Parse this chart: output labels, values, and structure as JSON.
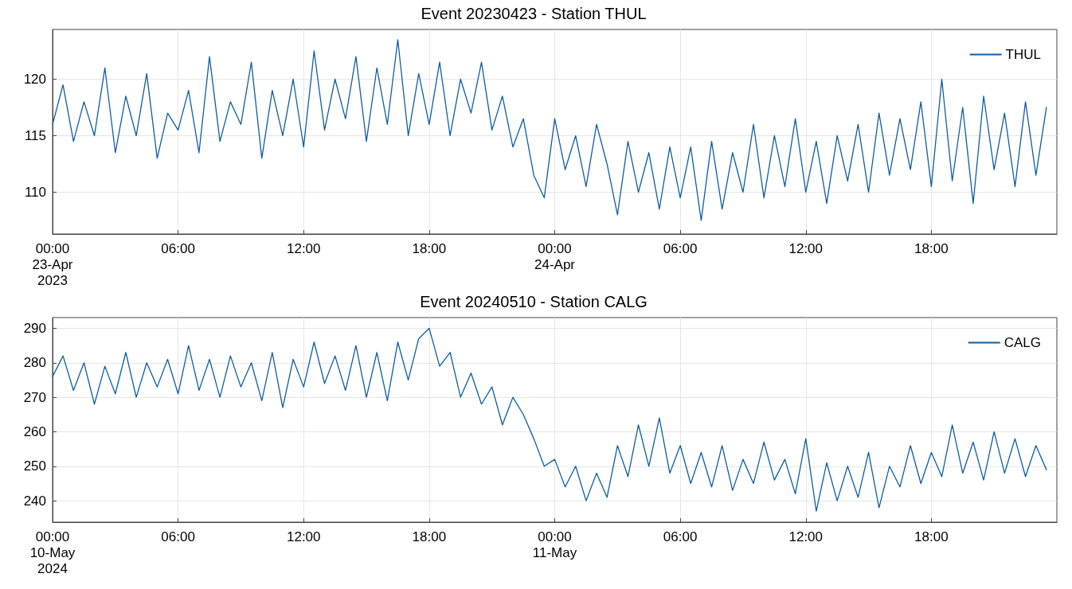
{
  "chart_data": [
    {
      "type": "line",
      "title": "Event 20230423 - Station THUL",
      "xlim": [
        "2023-04-23T00:00",
        "2023-04-25T00:00"
      ],
      "ylim": [
        106.3,
        124.4
      ],
      "yticks": [
        110,
        115,
        120
      ],
      "xticks": [
        {
          "value": "2023-04-23T00:00",
          "label": "00:00\n23-Apr\n2023"
        },
        {
          "value": "2023-04-23T06:00",
          "label": "06:00"
        },
        {
          "value": "2023-04-23T12:00",
          "label": "12:00"
        },
        {
          "value": "2023-04-23T18:00",
          "label": "18:00"
        },
        {
          "value": "2023-04-24T00:00",
          "label": "00:00\n24-Apr"
        },
        {
          "value": "2023-04-24T06:00",
          "label": "06:00"
        },
        {
          "value": "2023-04-24T12:00",
          "label": "12:00"
        },
        {
          "value": "2023-04-24T18:00",
          "label": "18:00"
        }
      ],
      "grid": true,
      "legend": "top right",
      "marker": "none",
      "line_style": "solid",
      "x": [
        "2023-04-23T00:00",
        "2023-04-23T00:30",
        "2023-04-23T01:00",
        "2023-04-23T01:30",
        "2023-04-23T02:00",
        "2023-04-23T02:30",
        "2023-04-23T03:00",
        "2023-04-23T03:30",
        "2023-04-23T04:00",
        "2023-04-23T04:30",
        "2023-04-23T05:00",
        "2023-04-23T05:30",
        "2023-04-23T06:00",
        "2023-04-23T06:30",
        "2023-04-23T07:00",
        "2023-04-23T07:30",
        "2023-04-23T08:00",
        "2023-04-23T08:30",
        "2023-04-23T09:00",
        "2023-04-23T09:30",
        "2023-04-23T10:00",
        "2023-04-23T10:30",
        "2023-04-23T11:00",
        "2023-04-23T11:30",
        "2023-04-23T12:00",
        "2023-04-23T12:30",
        "2023-04-23T13:00",
        "2023-04-23T13:30",
        "2023-04-23T14:00",
        "2023-04-23T14:30",
        "2023-04-23T15:00",
        "2023-04-23T15:30",
        "2023-04-23T16:00",
        "2023-04-23T16:30",
        "2023-04-23T17:00",
        "2023-04-23T17:30",
        "2023-04-23T18:00",
        "2023-04-23T18:30",
        "2023-04-23T19:00",
        "2023-04-23T19:30",
        "2023-04-23T20:00",
        "2023-04-23T20:30",
        "2023-04-23T21:00",
        "2023-04-23T21:30",
        "2023-04-23T22:00",
        "2023-04-23T22:30",
        "2023-04-23T23:00",
        "2023-04-23T23:30",
        "2023-04-24T00:00",
        "2023-04-24T00:30",
        "2023-04-24T01:00",
        "2023-04-24T01:30",
        "2023-04-24T02:00",
        "2023-04-24T02:30",
        "2023-04-24T03:00",
        "2023-04-24T03:30",
        "2023-04-24T04:00",
        "2023-04-24T04:30",
        "2023-04-24T05:00",
        "2023-04-24T05:30",
        "2023-04-24T06:00",
        "2023-04-24T06:30",
        "2023-04-24T07:00",
        "2023-04-24T07:30",
        "2023-04-24T08:00",
        "2023-04-24T08:30",
        "2023-04-24T09:00",
        "2023-04-24T09:30",
        "2023-04-24T10:00",
        "2023-04-24T10:30",
        "2023-04-24T11:00",
        "2023-04-24T11:30",
        "2023-04-24T12:00",
        "2023-04-24T12:30",
        "2023-04-24T13:00",
        "2023-04-24T13:30",
        "2023-04-24T14:00",
        "2023-04-24T14:30",
        "2023-04-24T15:00",
        "2023-04-24T15:30",
        "2023-04-24T16:00",
        "2023-04-24T16:30",
        "2023-04-24T17:00",
        "2023-04-24T17:30",
        "2023-04-24T18:00",
        "2023-04-24T18:30",
        "2023-04-24T19:00",
        "2023-04-24T19:30",
        "2023-04-24T20:00",
        "2023-04-24T20:30",
        "2023-04-24T21:00",
        "2023-04-24T21:30",
        "2023-04-24T22:00",
        "2023-04-24T22:30",
        "2023-04-24T23:00",
        "2023-04-24T23:30"
      ],
      "series": [
        {
          "name": "THUL",
          "color": "#0c5da5",
          "values": [
            116,
            119.5,
            114.5,
            118,
            115,
            121,
            113.5,
            118.5,
            115,
            120.5,
            113,
            117,
            115.5,
            119,
            113.5,
            122,
            114.5,
            118,
            116,
            121.5,
            113,
            119,
            115,
            120,
            114,
            122.5,
            115.5,
            120,
            116.5,
            122,
            114.5,
            121,
            116,
            123.5,
            115,
            120.5,
            116,
            121.5,
            115,
            120,
            117,
            121.5,
            115.5,
            118.5,
            114,
            116.5,
            111.5,
            109.5,
            116.5,
            112,
            115,
            110.5,
            116,
            112.5,
            108,
            114.5,
            110,
            113.5,
            108.5,
            114,
            109.5,
            114,
            107.5,
            114.5,
            108.5,
            113.5,
            110,
            116,
            109.5,
            115,
            110.5,
            116.5,
            110,
            114.5,
            109,
            115,
            111,
            116,
            110,
            117,
            111.5,
            116.5,
            112,
            118,
            110.5,
            120,
            111,
            117.5,
            109,
            118.5,
            112,
            117,
            110.5,
            118,
            111.5,
            117.5
          ]
        }
      ]
    },
    {
      "type": "line",
      "title": "Event 20240510 - Station CALG",
      "xlim": [
        "2024-05-10T00:00",
        "2024-05-12T00:00"
      ],
      "ylim": [
        233.8,
        293.1
      ],
      "yticks": [
        240,
        250,
        260,
        270,
        280,
        290
      ],
      "xticks": [
        {
          "value": "2024-05-10T00:00",
          "label": "00:00\n10-May\n2024"
        },
        {
          "value": "2024-05-10T06:00",
          "label": "06:00"
        },
        {
          "value": "2024-05-10T12:00",
          "label": "12:00"
        },
        {
          "value": "2024-05-10T18:00",
          "label": "18:00"
        },
        {
          "value": "2024-05-11T00:00",
          "label": "00:00\n11-May"
        },
        {
          "value": "2024-05-11T06:00",
          "label": "06:00"
        },
        {
          "value": "2024-05-11T12:00",
          "label": "12:00"
        },
        {
          "value": "2024-05-11T18:00",
          "label": "18:00"
        }
      ],
      "grid": true,
      "legend": "top right",
      "marker": "none",
      "line_style": "solid",
      "x": [
        "2024-05-10T00:00",
        "2024-05-10T00:30",
        "2024-05-10T01:00",
        "2024-05-10T01:30",
        "2024-05-10T02:00",
        "2024-05-10T02:30",
        "2024-05-10T03:00",
        "2024-05-10T03:30",
        "2024-05-10T04:00",
        "2024-05-10T04:30",
        "2024-05-10T05:00",
        "2024-05-10T05:30",
        "2024-05-10T06:00",
        "2024-05-10T06:30",
        "2024-05-10T07:00",
        "2024-05-10T07:30",
        "2024-05-10T08:00",
        "2024-05-10T08:30",
        "2024-05-10T09:00",
        "2024-05-10T09:30",
        "2024-05-10T10:00",
        "2024-05-10T10:30",
        "2024-05-10T11:00",
        "2024-05-10T11:30",
        "2024-05-10T12:00",
        "2024-05-10T12:30",
        "2024-05-10T13:00",
        "2024-05-10T13:30",
        "2024-05-10T14:00",
        "2024-05-10T14:30",
        "2024-05-10T15:00",
        "2024-05-10T15:30",
        "2024-05-10T16:00",
        "2024-05-10T16:30",
        "2024-05-10T17:00",
        "2024-05-10T17:30",
        "2024-05-10T18:00",
        "2024-05-10T18:30",
        "2024-05-10T19:00",
        "2024-05-10T19:30",
        "2024-05-10T20:00",
        "2024-05-10T20:30",
        "2024-05-10T21:00",
        "2024-05-10T21:30",
        "2024-05-10T22:00",
        "2024-05-10T22:30",
        "2024-05-10T23:00",
        "2024-05-10T23:30",
        "2024-05-11T00:00",
        "2024-05-11T00:30",
        "2024-05-11T01:00",
        "2024-05-11T01:30",
        "2024-05-11T02:00",
        "2024-05-11T02:30",
        "2024-05-11T03:00",
        "2024-05-11T03:30",
        "2024-05-11T04:00",
        "2024-05-11T04:30",
        "2024-05-11T05:00",
        "2024-05-11T05:30",
        "2024-05-11T06:00",
        "2024-05-11T06:30",
        "2024-05-11T07:00",
        "2024-05-11T07:30",
        "2024-05-11T08:00",
        "2024-05-11T08:30",
        "2024-05-11T09:00",
        "2024-05-11T09:30",
        "2024-05-11T10:00",
        "2024-05-11T10:30",
        "2024-05-11T11:00",
        "2024-05-11T11:30",
        "2024-05-11T12:00",
        "2024-05-11T12:30",
        "2024-05-11T13:00",
        "2024-05-11T13:30",
        "2024-05-11T14:00",
        "2024-05-11T14:30",
        "2024-05-11T15:00",
        "2024-05-11T15:30",
        "2024-05-11T16:00",
        "2024-05-11T16:30",
        "2024-05-11T17:00",
        "2024-05-11T17:30",
        "2024-05-11T18:00",
        "2024-05-11T18:30",
        "2024-05-11T19:00",
        "2024-05-11T19:30",
        "2024-05-11T20:00",
        "2024-05-11T20:30",
        "2024-05-11T21:00",
        "2024-05-11T21:30",
        "2024-05-11T22:00",
        "2024-05-11T22:30",
        "2024-05-11T23:00",
        "2024-05-11T23:30"
      ],
      "series": [
        {
          "name": "CALG",
          "color": "#0c5da5",
          "values": [
            276,
            282,
            272,
            280,
            268,
            279,
            271,
            283,
            270,
            280,
            273,
            281,
            271,
            285,
            272,
            281,
            270,
            282,
            273,
            280,
            269,
            283,
            267,
            281,
            273,
            286,
            274,
            282,
            272,
            285,
            270,
            283,
            269,
            286,
            275,
            287,
            290,
            279,
            283,
            270,
            277,
            268,
            273,
            262,
            270,
            265,
            258,
            250,
            252,
            244,
            250,
            240,
            248,
            241,
            256,
            247,
            262,
            250,
            264,
            248,
            256,
            245,
            254,
            244,
            256,
            243,
            252,
            245,
            257,
            246,
            252,
            242,
            258,
            237,
            251,
            240,
            250,
            241,
            254,
            238,
            250,
            244,
            256,
            245,
            254,
            247,
            262,
            248,
            257,
            246,
            260,
            248,
            258,
            247,
            256,
            249
          ]
        }
      ]
    }
  ]
}
